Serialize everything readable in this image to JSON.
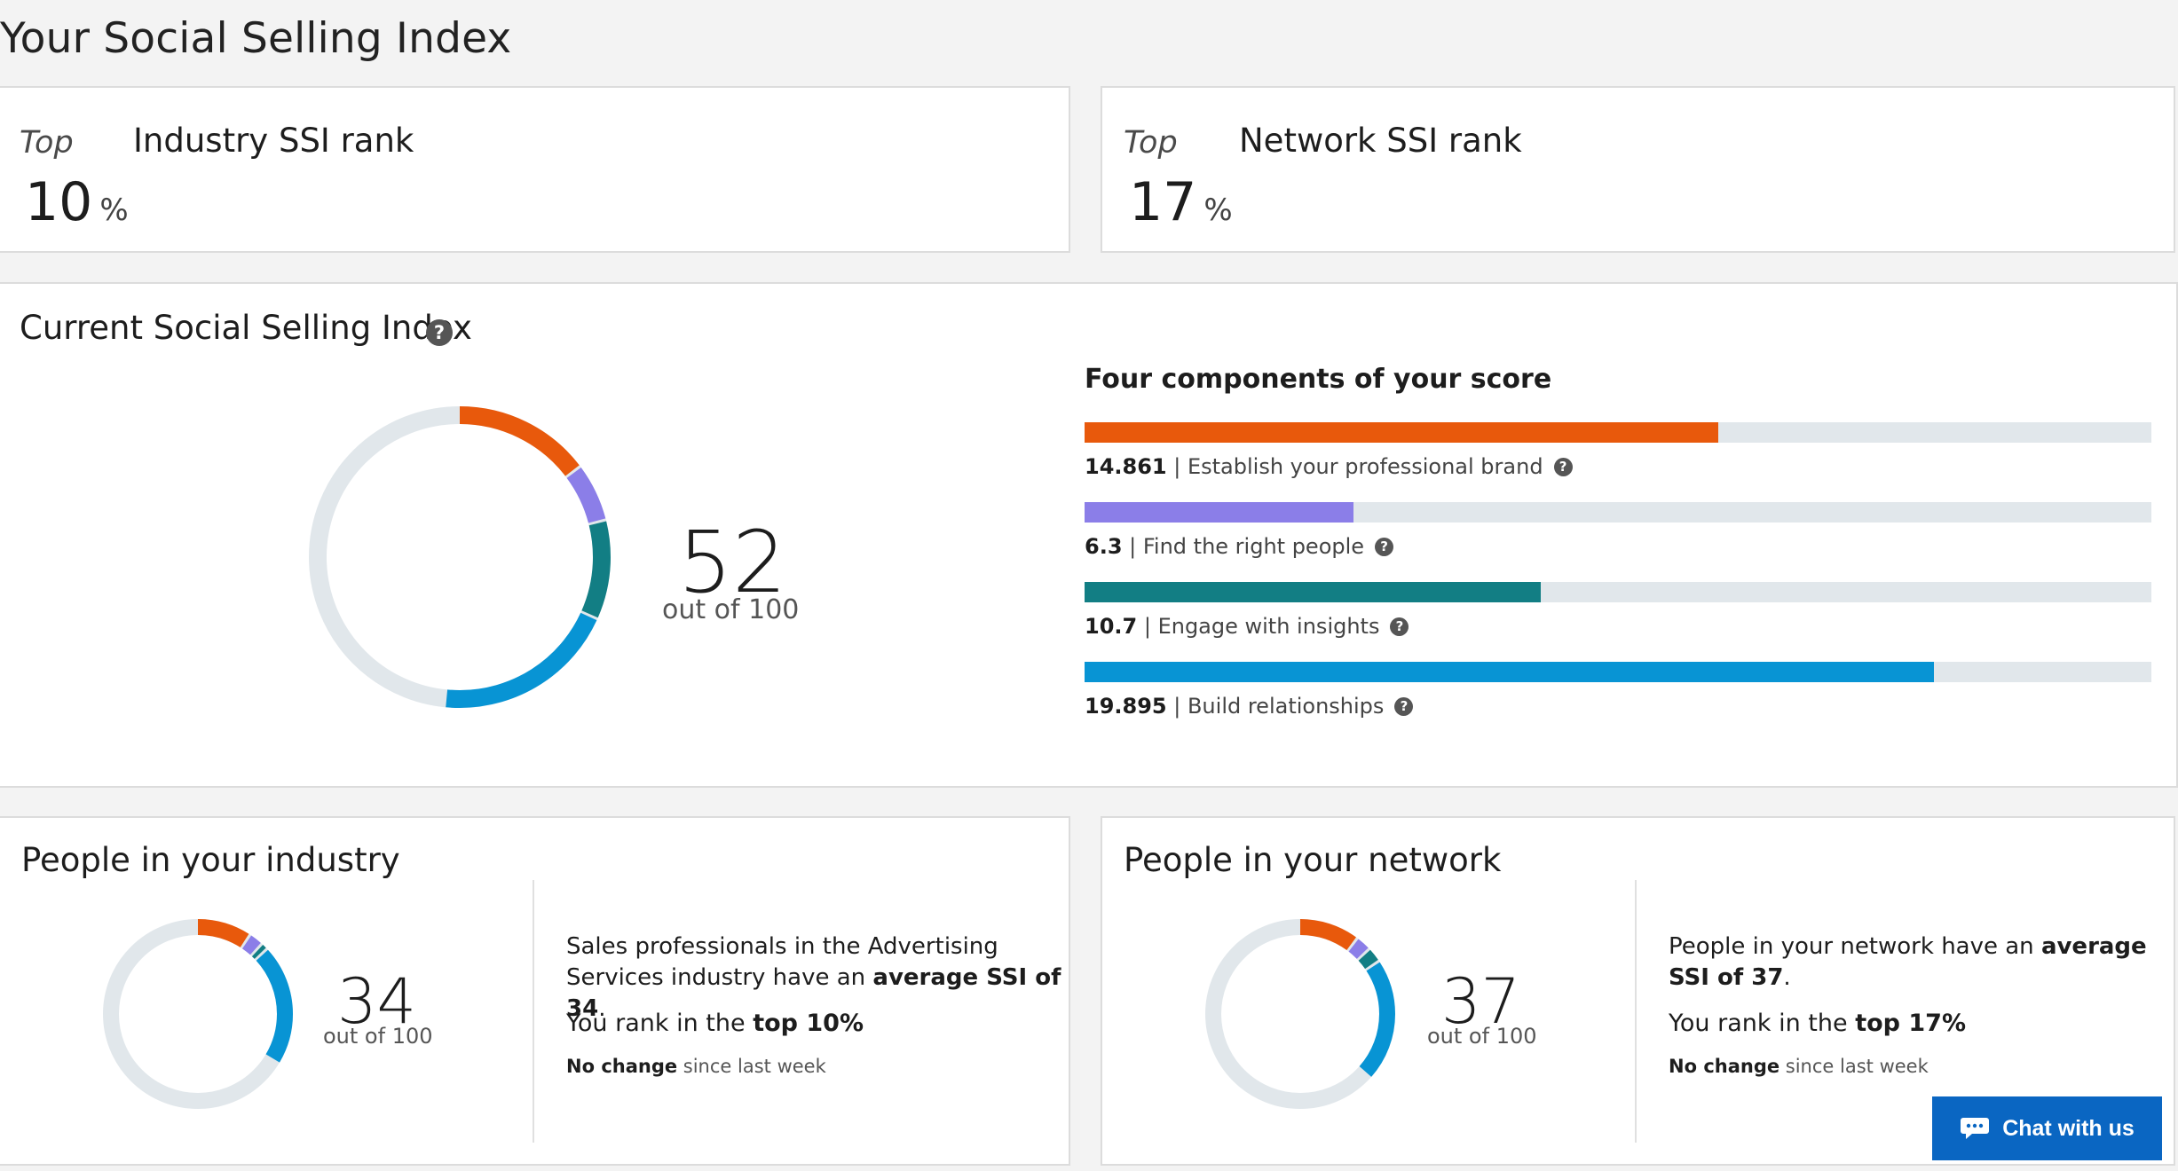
{
  "page": {
    "title": "Your Social Selling Index"
  },
  "industry_rank": {
    "prefix": "Top",
    "value": "10",
    "unit": "%",
    "title": "Industry SSI rank"
  },
  "network_rank": {
    "prefix": "Top",
    "value": "17",
    "unit": "%",
    "title": "Network SSI rank"
  },
  "current": {
    "title": "Current Social Selling Index",
    "help": "?",
    "score": "52",
    "out_of": "out of 100",
    "components_title": "Four components of your score",
    "components": [
      {
        "value": "14.861",
        "sep": " | ",
        "label": "Establish your professional brand",
        "fraction": 0.594,
        "color": "#e8590c"
      },
      {
        "value": "6.3",
        "sep": " | ",
        "label": "Find the right people",
        "fraction": 0.252,
        "color": "#8b7ee8"
      },
      {
        "value": "10.7",
        "sep": " | ",
        "label": "Engage with insights",
        "fraction": 0.428,
        "color": "#127e84"
      },
      {
        "value": "19.895",
        "sep": " | ",
        "label": "Build relationships",
        "fraction": 0.796,
        "color": "#0894d4"
      }
    ]
  },
  "industry": {
    "title": "People in your industry",
    "score": "34",
    "out_of": "out of 100",
    "desc_a": "Sales professionals in the Advertising Services industry have an ",
    "desc_b": "average SSI of 34",
    "desc_c": ".",
    "rank_a": "You rank in the ",
    "rank_b": "top 10%",
    "change_a": "No change",
    "change_b": " since last week",
    "segments": [
      9.5,
      2.5,
      1.2,
      20.8
    ]
  },
  "network": {
    "title": "People in your network",
    "score": "37",
    "out_of": "out of 100",
    "desc_a": "People in your network have an ",
    "desc_b": "average SSI of 37",
    "desc_c": ".",
    "rank_a": "You rank in the ",
    "rank_b": "top 17%",
    "change_a": "No change",
    "change_b": " since last week",
    "segments": [
      10.5,
      2.7,
      2.6,
      21.2
    ]
  },
  "chat": {
    "label": "Chat with us"
  },
  "colors": {
    "orange": "#e8590c",
    "purple": "#8b7ee8",
    "teal": "#127e84",
    "blue": "#0894d4",
    "track": "#e1e7eb"
  }
}
